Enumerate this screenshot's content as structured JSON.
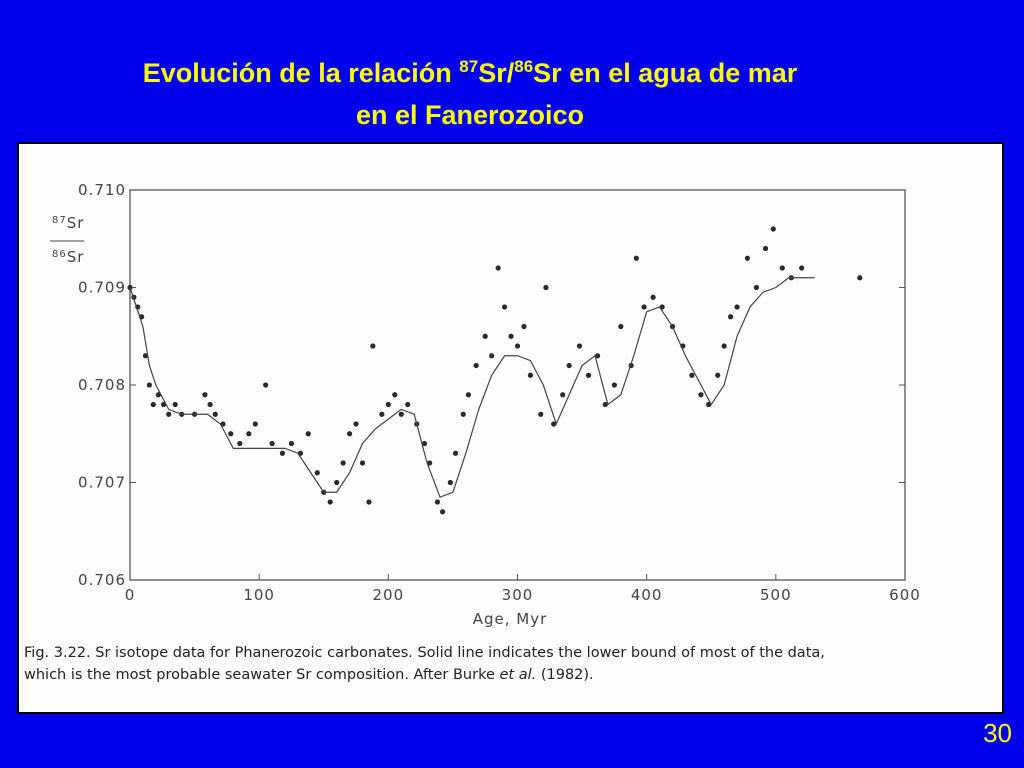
{
  "slide": {
    "title_line1": [
      "Evolución de la relación ",
      "87",
      "Sr/",
      "86",
      "Sr en el agua de mar"
    ],
    "title_line2": "en el Fanerozoico",
    "page_number": "30",
    "caption": [
      [
        "Fig. 3.22. Sr isotope data for Phanerozoic carbonates. Solid line indicates the lower bound of most of the data,"
      ],
      [
        "which is the most probable seawater Sr composition. After Burke ",
        "et al.",
        " (1982)."
      ]
    ]
  },
  "chart_data": {
    "type": "scatter",
    "x_label": "Age, Myr",
    "y_label": {
      "top": [
        "87",
        "Sr"
      ],
      "bottom": [
        "86",
        "Sr"
      ]
    },
    "xlim": [
      0,
      600
    ],
    "xticks": [
      0,
      100,
      200,
      300,
      400,
      500,
      600
    ],
    "ylim": [
      0.706,
      0.71
    ],
    "yticks": [
      0.706,
      0.707,
      0.708,
      0.709,
      {
        "value": 0.71,
        "label": "0.710"
      }
    ],
    "series": [
      {
        "type": "scatter",
        "color": "#2a2a2a",
        "x": [
          0,
          3,
          6,
          9,
          12,
          15,
          18,
          22,
          26,
          30,
          35,
          40,
          50,
          58,
          62,
          66,
          72,
          78,
          85,
          92,
          97,
          105,
          110,
          118,
          125,
          132,
          138,
          145,
          150,
          155,
          160,
          165,
          170,
          175,
          180,
          185,
          188,
          195,
          200,
          205,
          210,
          215,
          222,
          228,
          232,
          238,
          242,
          248,
          252,
          258,
          262,
          268,
          275,
          280,
          285,
          290,
          295,
          300,
          305,
          310,
          318,
          322,
          328,
          335,
          340,
          348,
          355,
          362,
          368,
          375,
          380,
          388,
          392,
          398,
          405,
          412,
          420,
          428,
          435,
          442,
          448,
          455,
          460,
          465,
          470,
          478,
          485,
          492,
          498,
          505,
          512,
          520,
          565
        ],
        "values": [
          0.709,
          0.7089,
          0.7088,
          0.7087,
          0.7083,
          0.708,
          0.7078,
          0.7079,
          0.7078,
          0.7077,
          0.7078,
          0.7077,
          0.7077,
          0.7079,
          0.7078,
          0.7077,
          0.7076,
          0.7075,
          0.7074,
          0.7075,
          0.7076,
          0.708,
          0.7074,
          0.7073,
          0.7074,
          0.7073,
          0.7075,
          0.7071,
          0.7069,
          0.7068,
          0.707,
          0.7072,
          0.7075,
          0.7076,
          0.7072,
          0.7068,
          0.7084,
          0.7077,
          0.7078,
          0.7079,
          0.7077,
          0.7078,
          0.7076,
          0.7074,
          0.7072,
          0.7068,
          0.7067,
          0.707,
          0.7073,
          0.7077,
          0.7079,
          0.7082,
          0.7085,
          0.7083,
          0.7092,
          0.7088,
          0.7085,
          0.7084,
          0.7086,
          0.7081,
          0.7077,
          0.709,
          0.7076,
          0.7079,
          0.7082,
          0.7084,
          0.7081,
          0.7083,
          0.7078,
          0.708,
          0.7086,
          0.7082,
          0.7093,
          0.7088,
          0.7089,
          0.7088,
          0.7086,
          0.7084,
          0.7081,
          0.7079,
          0.7078,
          0.7081,
          0.7084,
          0.7087,
          0.7088,
          0.7093,
          0.709,
          0.7094,
          0.7096,
          0.7092,
          0.7091,
          0.7092,
          0.7091
        ]
      },
      {
        "type": "line",
        "color": "#444444",
        "x": [
          0,
          5,
          10,
          15,
          20,
          30,
          40,
          50,
          60,
          70,
          80,
          90,
          100,
          110,
          120,
          130,
          140,
          150,
          160,
          170,
          180,
          190,
          200,
          210,
          220,
          230,
          240,
          250,
          260,
          270,
          280,
          290,
          300,
          310,
          320,
          330,
          340,
          350,
          360,
          370,
          380,
          390,
          400,
          410,
          420,
          430,
          440,
          450,
          460,
          470,
          480,
          490,
          500,
          510,
          520,
          530
        ],
        "values": [
          0.709,
          0.7088,
          0.7086,
          0.7082,
          0.708,
          0.70775,
          0.7077,
          0.7077,
          0.7077,
          0.7076,
          0.70735,
          0.70735,
          0.70735,
          0.70735,
          0.70735,
          0.7073,
          0.7071,
          0.7069,
          0.7069,
          0.7071,
          0.7074,
          0.70755,
          0.70765,
          0.70775,
          0.7077,
          0.7072,
          0.70685,
          0.7069,
          0.7073,
          0.70775,
          0.7081,
          0.7083,
          0.7083,
          0.70825,
          0.708,
          0.7076,
          0.7079,
          0.7082,
          0.7083,
          0.7078,
          0.7079,
          0.7083,
          0.70875,
          0.7088,
          0.7086,
          0.7083,
          0.70805,
          0.7078,
          0.708,
          0.7085,
          0.7088,
          0.70895,
          0.709,
          0.7091,
          0.7091,
          0.7091
        ]
      }
    ]
  }
}
